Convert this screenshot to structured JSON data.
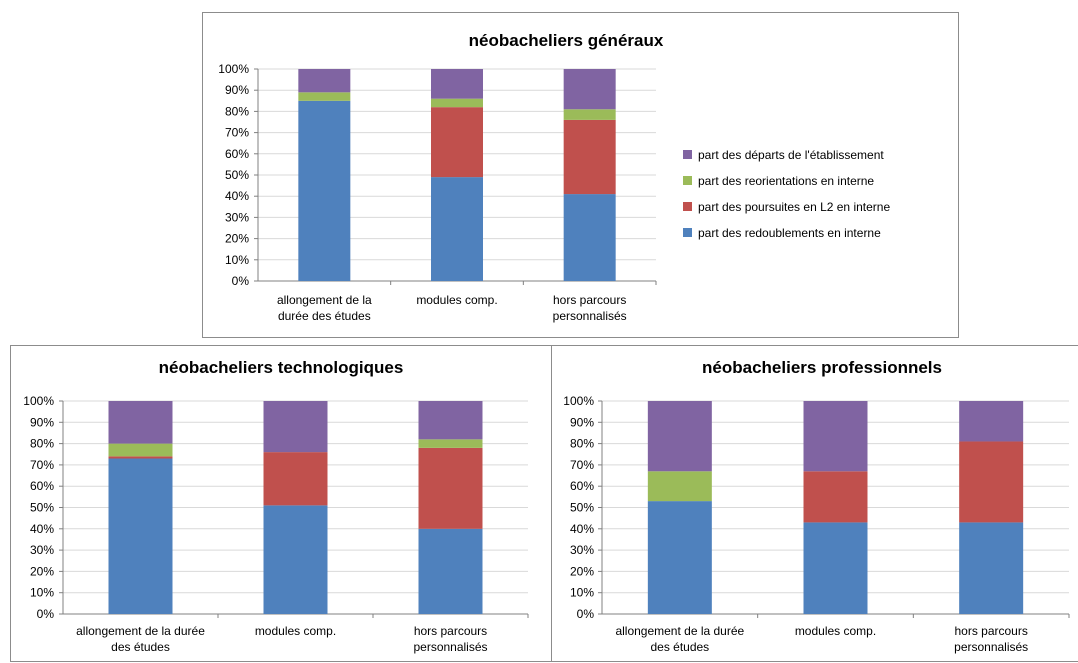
{
  "colors": {
    "redoublements": "#4f81bd",
    "poursuites": "#c0504d",
    "reorientations": "#9bbb59",
    "departs": "#8064a2",
    "grid": "#d9d9d9",
    "axis": "#808080"
  },
  "legend": [
    {
      "label": "part des départs de l'établissement",
      "color": "#8064a2"
    },
    {
      "label": "part des reorientations en interne",
      "color": "#9bbb59"
    },
    {
      "label": "part des poursuites en L2 en interne",
      "color": "#c0504d"
    },
    {
      "label": "part des redoublements en interne",
      "color": "#4f81bd"
    }
  ],
  "chart_data": [
    {
      "type": "bar",
      "stacked": true,
      "title": "néobacheliers généraux",
      "categories": [
        [
          "allongement de la",
          "durée des études"
        ],
        [
          "modules comp."
        ],
        [
          "hors parcours",
          "personnalisés"
        ]
      ],
      "y_ticks": [
        "0%",
        "10%",
        "20%",
        "30%",
        "40%",
        "50%",
        "60%",
        "70%",
        "80%",
        "90%",
        "100%"
      ],
      "ylim": [
        0,
        100
      ],
      "grid": true,
      "legend_position": "right",
      "series": [
        {
          "name": "part des redoublements en interne",
          "values": [
            85,
            49,
            41
          ]
        },
        {
          "name": "part des poursuites en L2 en interne",
          "values": [
            0,
            33,
            35
          ]
        },
        {
          "name": "part des reorientations en interne",
          "values": [
            4,
            4,
            5
          ]
        },
        {
          "name": "part des départs de l'établissement",
          "values": [
            11,
            14,
            19
          ]
        }
      ]
    },
    {
      "type": "bar",
      "stacked": true,
      "title": "néobacheliers technologiques",
      "categories": [
        [
          "allongement de la durée",
          "des études"
        ],
        [
          "modules comp."
        ],
        [
          "hors parcours",
          "personnalisés"
        ]
      ],
      "y_ticks": [
        "0%",
        "10%",
        "20%",
        "30%",
        "40%",
        "50%",
        "60%",
        "70%",
        "80%",
        "90%",
        "100%"
      ],
      "ylim": [
        0,
        100
      ],
      "grid": true,
      "series": [
        {
          "name": "part des redoublements en interne",
          "values": [
            73,
            51,
            40
          ]
        },
        {
          "name": "part des poursuites en L2 en interne",
          "values": [
            1,
            25,
            38
          ]
        },
        {
          "name": "part des reorientations en interne",
          "values": [
            6,
            0,
            4
          ]
        },
        {
          "name": "part des départs de l'établissement",
          "values": [
            20,
            24,
            18
          ]
        }
      ]
    },
    {
      "type": "bar",
      "stacked": true,
      "title": "néobacheliers professionnels",
      "categories": [
        [
          "allongement de la durée",
          "des études"
        ],
        [
          "modules comp."
        ],
        [
          "hors parcours",
          "personnalisés"
        ]
      ],
      "y_ticks": [
        "0%",
        "10%",
        "20%",
        "30%",
        "40%",
        "50%",
        "60%",
        "70%",
        "80%",
        "90%",
        "100%"
      ],
      "ylim": [
        0,
        100
      ],
      "grid": true,
      "series": [
        {
          "name": "part des redoublements en interne",
          "values": [
            53,
            43,
            43
          ]
        },
        {
          "name": "part des poursuites en L2 en interne",
          "values": [
            0,
            24,
            38
          ]
        },
        {
          "name": "part des reorientations en interne",
          "values": [
            14,
            0,
            0
          ]
        },
        {
          "name": "part des départs de l'établissement",
          "values": [
            33,
            33,
            19
          ]
        }
      ]
    }
  ]
}
